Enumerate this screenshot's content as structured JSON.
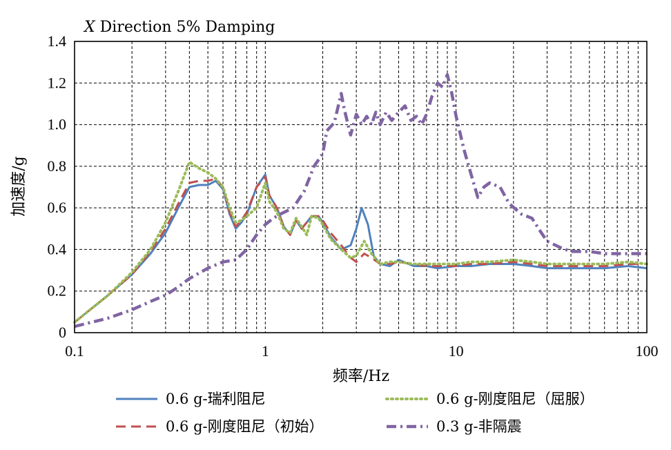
{
  "chart_data": {
    "type": "line",
    "title_italic": "X",
    "title": " Direction 5% Damping",
    "xlabel": "频率/Hz",
    "ylabel": "加速度/g",
    "xscale": "log",
    "xlim": [
      0.1,
      100
    ],
    "ylim": [
      0,
      1.4
    ],
    "grid": true,
    "legend_position": "bottom",
    "x_ticks": [
      0.1,
      1,
      10,
      100
    ],
    "x_tick_labels": [
      "0.1",
      "1",
      "10",
      "100"
    ],
    "y_ticks": [
      0,
      0.2,
      0.4,
      0.6,
      0.8,
      1.0,
      1.2,
      1.4
    ],
    "y_tick_labels": [
      "0",
      "0.2",
      "0.4",
      "0.6",
      "0.8",
      "1.0",
      "1.2",
      "1.4"
    ],
    "series": [
      {
        "name": "0.6 g-瑞利阻尼",
        "color": "#4f81bd",
        "style": "solid",
        "points": [
          [
            0.1,
            0.05
          ],
          [
            0.15,
            0.18
          ],
          [
            0.2,
            0.28
          ],
          [
            0.25,
            0.38
          ],
          [
            0.3,
            0.48
          ],
          [
            0.35,
            0.6
          ],
          [
            0.4,
            0.7
          ],
          [
            0.45,
            0.71
          ],
          [
            0.5,
            0.71
          ],
          [
            0.55,
            0.73
          ],
          [
            0.6,
            0.69
          ],
          [
            0.65,
            0.57
          ],
          [
            0.7,
            0.5
          ],
          [
            0.75,
            0.53
          ],
          [
            0.8,
            0.57
          ],
          [
            0.9,
            0.7
          ],
          [
            1.0,
            0.76
          ],
          [
            1.05,
            0.66
          ],
          [
            1.15,
            0.6
          ],
          [
            1.25,
            0.51
          ],
          [
            1.35,
            0.47
          ],
          [
            1.45,
            0.54
          ],
          [
            1.55,
            0.5
          ],
          [
            1.65,
            0.53
          ],
          [
            1.75,
            0.56
          ],
          [
            1.9,
            0.56
          ],
          [
            2.0,
            0.53
          ],
          [
            2.2,
            0.46
          ],
          [
            2.5,
            0.4
          ],
          [
            2.8,
            0.42
          ],
          [
            3.0,
            0.5
          ],
          [
            3.2,
            0.6
          ],
          [
            3.45,
            0.52
          ],
          [
            3.7,
            0.37
          ],
          [
            4.0,
            0.33
          ],
          [
            4.5,
            0.32
          ],
          [
            5.0,
            0.35
          ],
          [
            6.0,
            0.32
          ],
          [
            7.0,
            0.32
          ],
          [
            8.0,
            0.31
          ],
          [
            10,
            0.32
          ],
          [
            12,
            0.32
          ],
          [
            15,
            0.33
          ],
          [
            20,
            0.33
          ],
          [
            25,
            0.32
          ],
          [
            30,
            0.31
          ],
          [
            40,
            0.31
          ],
          [
            50,
            0.31
          ],
          [
            60,
            0.31
          ],
          [
            80,
            0.32
          ],
          [
            100,
            0.31
          ]
        ]
      },
      {
        "name": "0.6 g-刚度阻尼（初始）",
        "color": "#c0504d",
        "style": "dashed",
        "points": [
          [
            0.1,
            0.05
          ],
          [
            0.15,
            0.18
          ],
          [
            0.2,
            0.28
          ],
          [
            0.25,
            0.39
          ],
          [
            0.3,
            0.5
          ],
          [
            0.35,
            0.62
          ],
          [
            0.4,
            0.72
          ],
          [
            0.45,
            0.73
          ],
          [
            0.5,
            0.73
          ],
          [
            0.55,
            0.74
          ],
          [
            0.6,
            0.7
          ],
          [
            0.65,
            0.58
          ],
          [
            0.7,
            0.51
          ],
          [
            0.75,
            0.54
          ],
          [
            0.8,
            0.58
          ],
          [
            0.9,
            0.7
          ],
          [
            1.0,
            0.75
          ],
          [
            1.05,
            0.66
          ],
          [
            1.15,
            0.6
          ],
          [
            1.25,
            0.51
          ],
          [
            1.35,
            0.47
          ],
          [
            1.45,
            0.54
          ],
          [
            1.55,
            0.5
          ],
          [
            1.65,
            0.53
          ],
          [
            1.75,
            0.56
          ],
          [
            1.9,
            0.56
          ],
          [
            2.0,
            0.54
          ],
          [
            2.2,
            0.48
          ],
          [
            2.5,
            0.42
          ],
          [
            2.8,
            0.36
          ],
          [
            3.0,
            0.34
          ],
          [
            3.3,
            0.38
          ],
          [
            3.6,
            0.36
          ],
          [
            4.0,
            0.33
          ],
          [
            4.5,
            0.33
          ],
          [
            5.0,
            0.34
          ],
          [
            6.0,
            0.33
          ],
          [
            7.0,
            0.32
          ],
          [
            8.0,
            0.32
          ],
          [
            10,
            0.32
          ],
          [
            12,
            0.33
          ],
          [
            15,
            0.33
          ],
          [
            20,
            0.34
          ],
          [
            25,
            0.33
          ],
          [
            30,
            0.32
          ],
          [
            40,
            0.32
          ],
          [
            50,
            0.32
          ],
          [
            60,
            0.32
          ],
          [
            80,
            0.33
          ],
          [
            100,
            0.33
          ]
        ]
      },
      {
        "name": "0.6 g-刚度阻尼（屈服）",
        "color": "#9bbb59",
        "style": "dotted",
        "points": [
          [
            0.1,
            0.05
          ],
          [
            0.15,
            0.18
          ],
          [
            0.2,
            0.29
          ],
          [
            0.25,
            0.4
          ],
          [
            0.3,
            0.53
          ],
          [
            0.35,
            0.68
          ],
          [
            0.4,
            0.82
          ],
          [
            0.45,
            0.79
          ],
          [
            0.5,
            0.77
          ],
          [
            0.55,
            0.74
          ],
          [
            0.6,
            0.7
          ],
          [
            0.65,
            0.6
          ],
          [
            0.7,
            0.53
          ],
          [
            0.75,
            0.54
          ],
          [
            0.8,
            0.56
          ],
          [
            0.9,
            0.6
          ],
          [
            1.0,
            0.72
          ],
          [
            1.05,
            0.63
          ],
          [
            1.15,
            0.58
          ],
          [
            1.25,
            0.5
          ],
          [
            1.35,
            0.48
          ],
          [
            1.45,
            0.55
          ],
          [
            1.55,
            0.51
          ],
          [
            1.65,
            0.47
          ],
          [
            1.75,
            0.56
          ],
          [
            1.9,
            0.55
          ],
          [
            2.0,
            0.52
          ],
          [
            2.2,
            0.45
          ],
          [
            2.5,
            0.4
          ],
          [
            2.8,
            0.36
          ],
          [
            3.0,
            0.37
          ],
          [
            3.3,
            0.44
          ],
          [
            3.6,
            0.38
          ],
          [
            4.0,
            0.33
          ],
          [
            4.5,
            0.34
          ],
          [
            5.0,
            0.34
          ],
          [
            6.0,
            0.33
          ],
          [
            7.0,
            0.33
          ],
          [
            8.0,
            0.33
          ],
          [
            10,
            0.33
          ],
          [
            12,
            0.34
          ],
          [
            15,
            0.34
          ],
          [
            20,
            0.35
          ],
          [
            25,
            0.34
          ],
          [
            30,
            0.33
          ],
          [
            40,
            0.33
          ],
          [
            50,
            0.33
          ],
          [
            60,
            0.33
          ],
          [
            80,
            0.34
          ],
          [
            100,
            0.33
          ]
        ]
      },
      {
        "name": "0.3 g-非隔震",
        "color": "#8064a2",
        "style": "dashdot",
        "points": [
          [
            0.1,
            0.03
          ],
          [
            0.15,
            0.07
          ],
          [
            0.2,
            0.11
          ],
          [
            0.25,
            0.15
          ],
          [
            0.3,
            0.18
          ],
          [
            0.35,
            0.22
          ],
          [
            0.4,
            0.26
          ],
          [
            0.5,
            0.31
          ],
          [
            0.6,
            0.34
          ],
          [
            0.7,
            0.35
          ],
          [
            0.8,
            0.4
          ],
          [
            0.9,
            0.47
          ],
          [
            1.0,
            0.52
          ],
          [
            1.1,
            0.55
          ],
          [
            1.2,
            0.57
          ],
          [
            1.4,
            0.6
          ],
          [
            1.6,
            0.68
          ],
          [
            1.8,
            0.8
          ],
          [
            2.0,
            0.86
          ],
          [
            2.1,
            0.97
          ],
          [
            2.3,
            1.01
          ],
          [
            2.5,
            1.15
          ],
          [
            2.6,
            1.07
          ],
          [
            2.8,
            0.95
          ],
          [
            3.0,
            1.05
          ],
          [
            3.2,
            1.0
          ],
          [
            3.4,
            1.04
          ],
          [
            3.6,
            1.0
          ],
          [
            3.8,
            1.06
          ],
          [
            4.0,
            1.0
          ],
          [
            4.3,
            1.06
          ],
          [
            4.6,
            1.02
          ],
          [
            5.0,
            1.06
          ],
          [
            5.4,
            1.09
          ],
          [
            5.8,
            1.02
          ],
          [
            6.2,
            1.04
          ],
          [
            6.6,
            1.0
          ],
          [
            7.0,
            1.05
          ],
          [
            7.5,
            1.14
          ],
          [
            8.0,
            1.2
          ],
          [
            8.5,
            1.18
          ],
          [
            9.0,
            1.24
          ],
          [
            9.5,
            1.15
          ],
          [
            10,
            1.04
          ],
          [
            11,
            0.88
          ],
          [
            12,
            0.76
          ],
          [
            13,
            0.65
          ],
          [
            14,
            0.7
          ],
          [
            15,
            0.72
          ],
          [
            17,
            0.7
          ],
          [
            19,
            0.62
          ],
          [
            22,
            0.57
          ],
          [
            25,
            0.55
          ],
          [
            28,
            0.48
          ],
          [
            30,
            0.44
          ],
          [
            35,
            0.41
          ],
          [
            40,
            0.39
          ],
          [
            50,
            0.39
          ],
          [
            60,
            0.38
          ],
          [
            80,
            0.38
          ],
          [
            100,
            0.38
          ]
        ]
      }
    ]
  }
}
